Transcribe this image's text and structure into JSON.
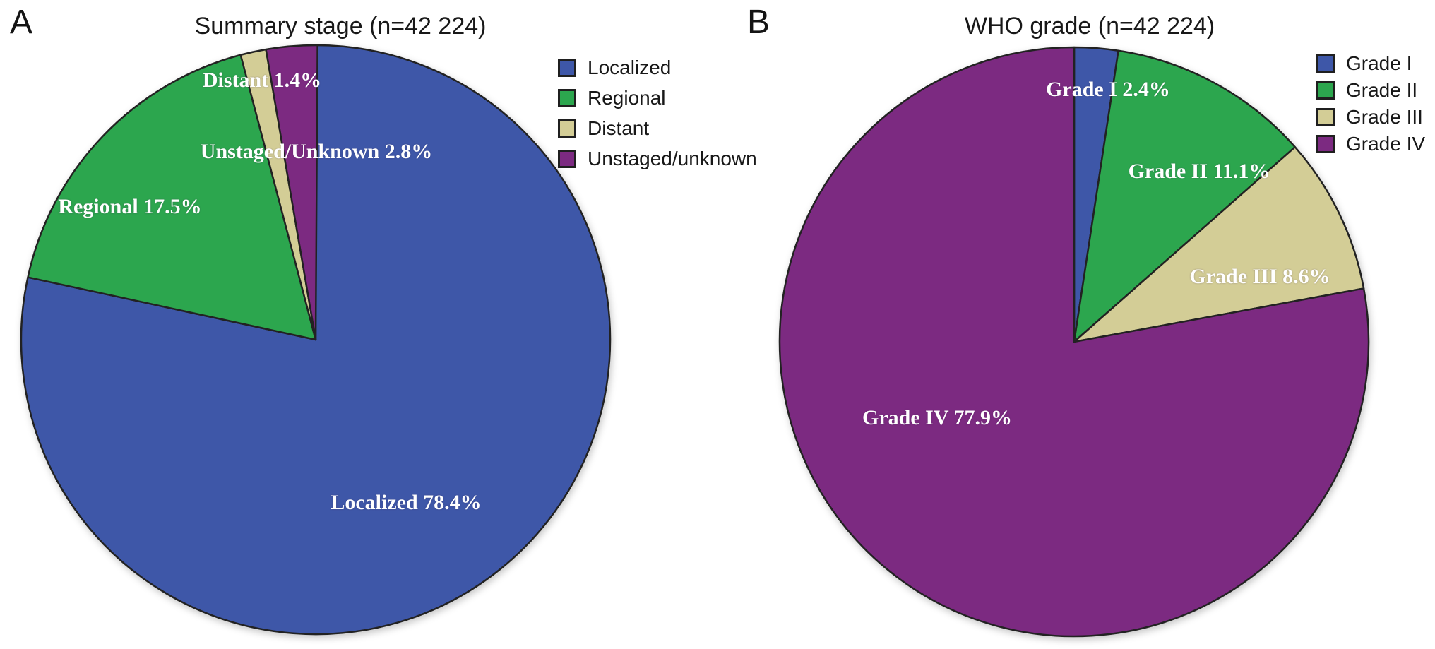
{
  "figure": {
    "panel_labels": [
      "A",
      "B"
    ],
    "background": "#ffffff",
    "title_color": "#181818",
    "slice_label_color": "#ffffff",
    "slice_stroke_color": "#222222"
  },
  "chart_data": [
    {
      "type": "pie",
      "panel": "A",
      "title": "Summary stage (n=42 224)",
      "n_total": "42 224",
      "categories": [
        "Localized",
        "Regional",
        "Distant",
        "Unstaged/unknown"
      ],
      "values": [
        78.4,
        17.5,
        1.4,
        2.8
      ],
      "unit": "percent",
      "colors": [
        "#3e57a8",
        "#2ca64e",
        "#d3cd96",
        "#7c2a81"
      ],
      "slice_labels": [
        "Localized 78.4%",
        "Regional 17.5%",
        "Distant 1.4%",
        "Unstaged/Unknown 2.8%"
      ],
      "start_angle_deg": 0,
      "direction": "clockwise",
      "legend_position": "top-right-outside"
    },
    {
      "type": "pie",
      "panel": "B",
      "title": "WHO grade (n=42 224)",
      "n_total": "42 224",
      "categories": [
        "Grade I",
        "Grade II",
        "Grade III",
        "Grade IV"
      ],
      "values": [
        2.4,
        11.1,
        8.6,
        77.9
      ],
      "unit": "percent",
      "colors": [
        "#3e57a8",
        "#2ca64e",
        "#d3cd96",
        "#7c2a81"
      ],
      "slice_labels": [
        "Grade I 2.4%",
        "Grade II 11.1%",
        "Grade III 8.6%",
        "Grade IV 77.9%"
      ],
      "start_angle_deg": 0,
      "direction": "clockwise",
      "legend_position": "top-right-outside"
    }
  ]
}
